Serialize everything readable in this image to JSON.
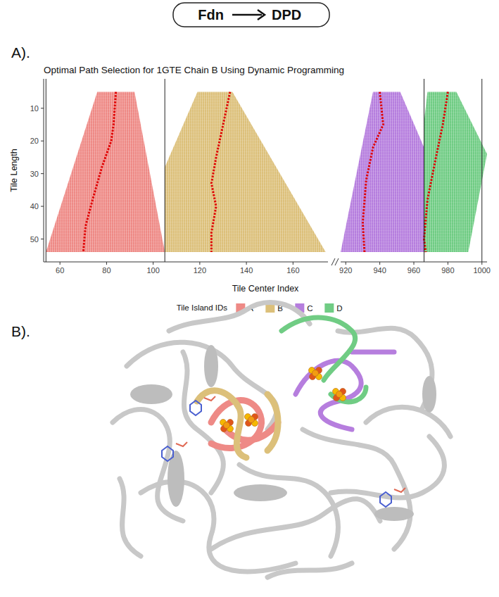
{
  "header": {
    "left": "Fdn",
    "right": "DPD"
  },
  "panel_labels": [
    "A).",
    "B)."
  ],
  "chart_data": {
    "type": "tile_map",
    "title": "Optimal Path Selection for 1GTE Chain B Using Dynamic Programming",
    "x_label": "Tile Center Index",
    "y_label": "Tile Length",
    "ylim": [
      57,
      1
    ],
    "yticks": [
      10,
      20,
      30,
      40,
      50
    ],
    "legend": "bottom",
    "legend_title": "Tile Island IDs",
    "panels": [
      {
        "xlim": [
          53,
          175
        ],
        "xticks": [
          60,
          80,
          100,
          120,
          140,
          160
        ],
        "boundaries": [
          54,
          105
        ],
        "series": [
          {
            "name": "A",
            "color": "#ee8a86",
            "outline_x": [
              76,
              92,
              105,
              54
            ],
            "outline_y": [
              5,
              5,
              54,
              54
            ],
            "path": {
              "color": "#e00000",
              "line_style": "dotted",
              "x": [
                84,
                83,
                82,
                78,
                74,
                71,
                70
              ],
              "y": [
                5,
                15,
                20,
                28,
                38,
                46,
                54
              ]
            }
          },
          {
            "name": "B",
            "color": "#dcc07a",
            "outline_x": [
              119,
              134,
              174,
              105,
              105
            ],
            "outline_y": [
              5,
              5,
              54,
              54,
              28
            ],
            "path": {
              "color": "#e00000",
              "line_style": "dotted",
              "x": [
                133,
                130,
                127,
                125,
                127,
                125,
                125
              ],
              "y": [
                5,
                15,
                25,
                33,
                40,
                48,
                54
              ]
            }
          }
        ]
      },
      {
        "xlim": [
          917,
          1003
        ],
        "xticks": [
          920,
          940,
          960,
          980,
          1000
        ],
        "boundaries": [
          966,
          1000
        ],
        "series": [
          {
            "name": "C",
            "color": "#b67ede",
            "outline_x": [
              936,
              952,
              966,
              966,
              917
            ],
            "outline_y": [
              5,
              5,
              22,
              54,
              54
            ],
            "path": {
              "color": "#e00000",
              "line_style": "dotted",
              "x": [
                940,
                942,
                936,
                932,
                930,
                931
              ],
              "y": [
                5,
                15,
                22,
                32,
                45,
                54
              ]
            }
          },
          {
            "name": "D",
            "color": "#70cc84",
            "outline_x": [
              968,
              985,
              1003,
              992,
              966,
              966
            ],
            "outline_y": [
              5,
              5,
              24,
              54,
              54,
              14
            ],
            "path": {
              "color": "#e00000",
              "line_style": "dotted",
              "x": [
                980,
                977,
                973,
                968,
                966,
                967
              ],
              "y": [
                5,
                15,
                25,
                38,
                50,
                54
              ]
            }
          }
        ]
      }
    ]
  }
}
